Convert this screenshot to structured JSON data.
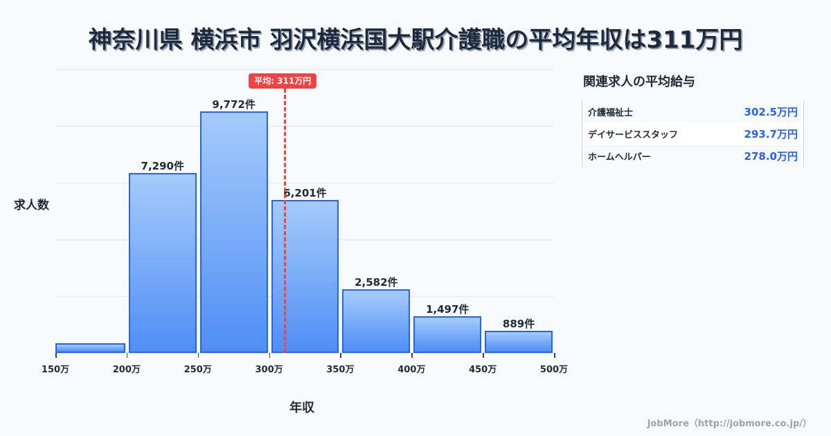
{
  "title": "神奈川県 横浜市 羽沢横浜国大駅介護職の平均年収は311万円",
  "chart_data": {
    "type": "bar",
    "title": "神奈川県 横浜市 羽沢横浜国大駅介護職の平均年収は311万円",
    "xlabel": "年収",
    "ylabel": "求人数",
    "bins": [
      {
        "from": 150,
        "to": 200,
        "count": 390,
        "label": ""
      },
      {
        "from": 200,
        "to": 250,
        "count": 7290,
        "label": "7,290件"
      },
      {
        "from": 250,
        "to": 300,
        "count": 9772,
        "label": "9,772件"
      },
      {
        "from": 300,
        "to": 350,
        "count": 6201,
        "label": "6,201件"
      },
      {
        "from": 350,
        "to": 400,
        "count": 2582,
        "label": "2,582件"
      },
      {
        "from": 400,
        "to": 450,
        "count": 1497,
        "label": "1,497件"
      },
      {
        "from": 450,
        "to": 500,
        "count": 889,
        "label": "889件"
      }
    ],
    "categories": [
      "150-200万",
      "200-250万",
      "250-300万",
      "300-350万",
      "350-400万",
      "400-450万",
      "450-500万"
    ],
    "values": [
      390,
      7290,
      9772,
      6201,
      2582,
      1497,
      889
    ],
    "xticks": [
      "150万",
      "200万",
      "250万",
      "300万",
      "350万",
      "400万",
      "450万",
      "500万"
    ],
    "xlim": [
      150,
      500
    ],
    "ylim": [
      0,
      11480
    ],
    "grid": true,
    "average": {
      "value": 311,
      "label": "平均: 311万円"
    },
    "colors": {
      "bar_fill_top": "#a5cbfb",
      "bar_fill_bottom": "#4f8ef5",
      "bar_border": "#2563eb",
      "average_line": "#ef4444"
    }
  },
  "sidebar": {
    "title": "関連求人の平均給与",
    "rows": [
      {
        "name": "介護福祉士",
        "value": "302.5万円"
      },
      {
        "name": "デイサービススタッフ",
        "value": "293.7万円"
      },
      {
        "name": "ホームヘルパー",
        "value": "278.0万円"
      }
    ]
  },
  "watermark": "JobMore（http://jobmore.co.jp/）"
}
